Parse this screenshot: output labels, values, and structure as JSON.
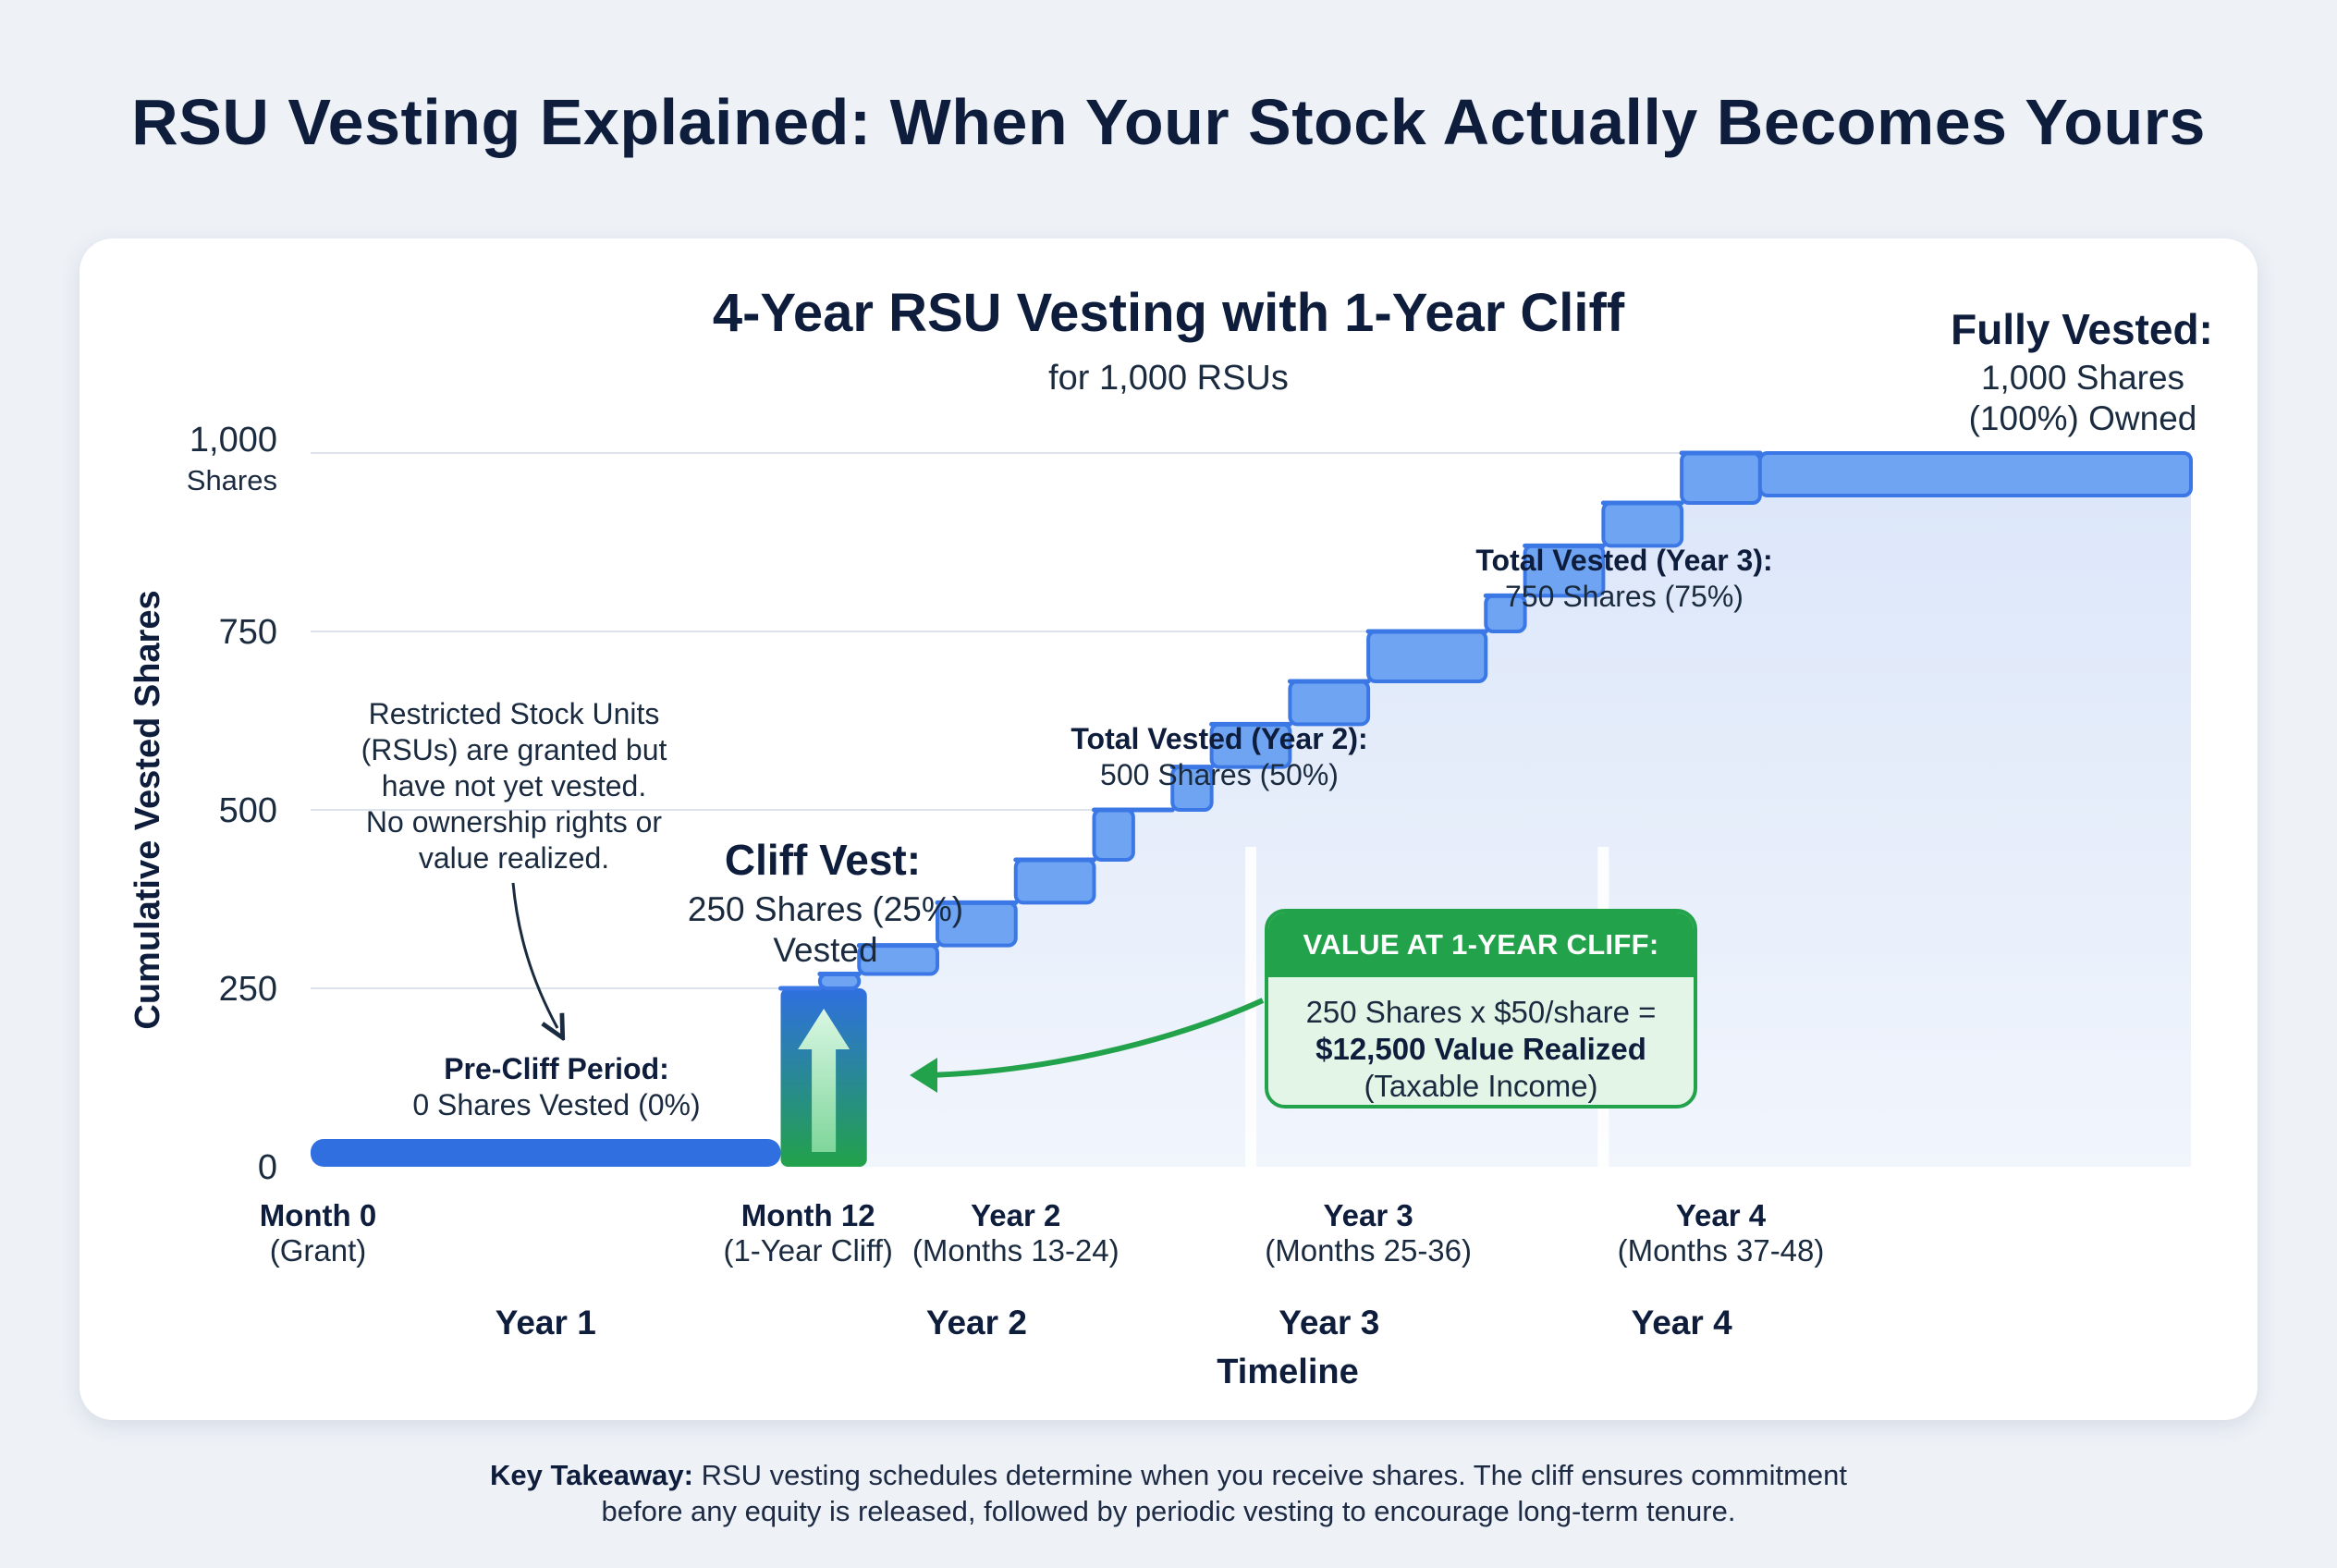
{
  "title": "RSU Vesting Explained: When Your Stock Actually Becomes Yours",
  "colors": {
    "background": "#eef2f7",
    "step_blue": "#3b78e6",
    "step_blue_light": "#6ea4f2",
    "cliff_green": "#22a24a",
    "area_fill": "#e6eefb"
  },
  "takeaway": {
    "label": "Key Takeaway:",
    "line1": "RSU vesting schedules determine when you receive shares. The cliff ensures commitment",
    "line2": "before any equity is released, followed by periodic vesting to encourage long-term tenure."
  },
  "callout": {
    "header": "VALUE AT 1-YEAR CLIFF:",
    "line1": "250 Shares x $50/share =",
    "line2": "$12,500 Value Realized",
    "line3": "(Taxable Income)"
  },
  "chart_data": {
    "type": "area",
    "title": "4-Year RSU Vesting with 1-Year Cliff",
    "subtitle": "for 1,000 RSUs",
    "xlabel": "Timeline",
    "ylabel": "Cumulative Vested Shares",
    "xlim": [
      0,
      48
    ],
    "ylim": [
      0,
      1000
    ],
    "y_ticks": [
      {
        "value": 0,
        "label": "0"
      },
      {
        "value": 250,
        "label": "250"
      },
      {
        "value": 500,
        "label": "500"
      },
      {
        "value": 750,
        "label": "750"
      },
      {
        "value": 1000,
        "label": "1,000",
        "sublabel": "Shares"
      }
    ],
    "grid": true,
    "cliff": {
      "month": 12,
      "shares": 250
    },
    "vesting_steps": [
      {
        "month": 0,
        "shares": 0
      },
      {
        "month": 12,
        "shares": 250
      },
      {
        "month": 13,
        "shares": 270
      },
      {
        "month": 14,
        "shares": 310
      },
      {
        "month": 16,
        "shares": 370
      },
      {
        "month": 18,
        "shares": 430
      },
      {
        "month": 20,
        "shares": 500
      },
      {
        "month": 21,
        "shares": 500
      },
      {
        "month": 22,
        "shares": 560
      },
      {
        "month": 23,
        "shares": 620
      },
      {
        "month": 25,
        "shares": 680
      },
      {
        "month": 27,
        "shares": 750
      },
      {
        "month": 30,
        "shares": 800
      },
      {
        "month": 31,
        "shares": 870
      },
      {
        "month": 33,
        "shares": 930
      },
      {
        "month": 35,
        "shares": 1000
      },
      {
        "month": 37,
        "shares": 1000
      }
    ],
    "x_ticks": [
      {
        "month": 0,
        "label": "Month 0",
        "sublabel": "(Grant)"
      },
      {
        "month": 12.7,
        "label": "Month 12",
        "sublabel": "(1-Year Cliff)"
      },
      {
        "month": 18,
        "label": "Year 2",
        "sublabel": "(Months 13-24)"
      },
      {
        "month": 27,
        "label": "Year 3",
        "sublabel": "(Months 25-36)"
      },
      {
        "month": 36,
        "label": "Year 4",
        "sublabel": "(Months 37-48)"
      }
    ],
    "year_labels": [
      {
        "month": 6,
        "label": "Year 1"
      },
      {
        "month": 17,
        "label": "Year 2"
      },
      {
        "month": 26,
        "label": "Year 3"
      },
      {
        "month": 35,
        "label": "Year 4"
      }
    ],
    "annotations": [
      {
        "id": "rsu-note",
        "lines": [
          "Restricted Stock Units",
          "(RSUs) are granted but",
          "have not yet vested.",
          "No ownership rights or",
          "value realized."
        ]
      },
      {
        "id": "pre-cliff",
        "title": "Pre-Cliff Period:",
        "text": "0 Shares Vested (0%)"
      },
      {
        "id": "cliff-vest",
        "title": "Cliff Vest:",
        "lines": [
          "250 Shares (25%)",
          "Vested"
        ]
      },
      {
        "id": "year2-total",
        "title": "Total Vested (Year 2):",
        "text": "500 Shares (50%)"
      },
      {
        "id": "year3-total",
        "title": "Total Vested (Year 3):",
        "text": "750 Shares (75%)"
      },
      {
        "id": "fully-vested",
        "title": "Fully Vested:",
        "lines": [
          "1,000 Shares",
          "(100%) Owned"
        ]
      }
    ]
  }
}
